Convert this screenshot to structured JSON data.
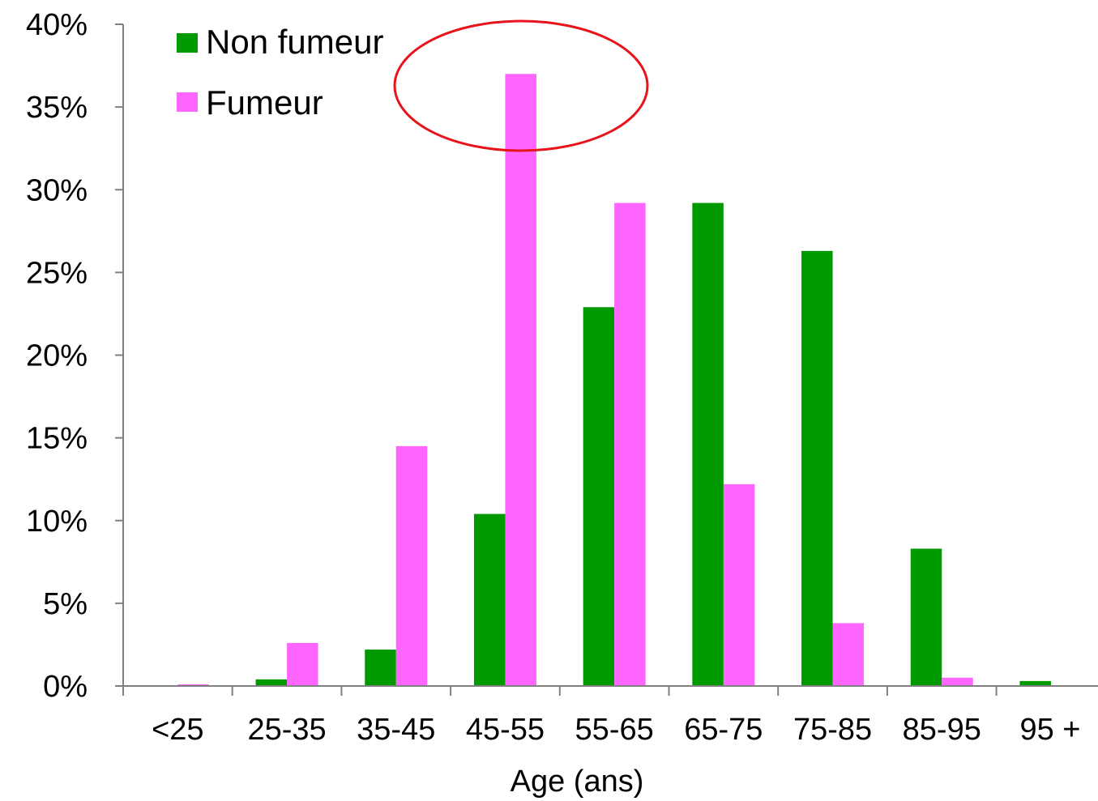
{
  "chart_data": {
    "type": "bar",
    "categories": [
      "<25",
      "25-35",
      "35-45",
      "45-55",
      "55-65",
      "65-75",
      "75-85",
      "85-95",
      "95 +"
    ],
    "series": [
      {
        "name": "Non fumeur",
        "color": "#009900",
        "values": [
          0.0,
          0.4,
          2.2,
          10.4,
          22.9,
          29.2,
          26.3,
          8.3,
          0.3
        ]
      },
      {
        "name": "Fumeur",
        "color": "#ff66ff",
        "values": [
          0.1,
          2.6,
          14.5,
          37.0,
          29.2,
          12.2,
          3.8,
          0.5,
          0.0
        ]
      }
    ],
    "xlabel": "Age (ans)",
    "ylabel": "",
    "ylim": [
      0,
      40
    ],
    "yticks": [
      "0%",
      "5%",
      "10%",
      "15%",
      "20%",
      "25%",
      "30%",
      "35%",
      "40%"
    ],
    "grid": false,
    "legend_position": "top-left",
    "annotation": {
      "shape": "ellipse",
      "color": "#e8141c",
      "highlights": "45-55"
    }
  }
}
